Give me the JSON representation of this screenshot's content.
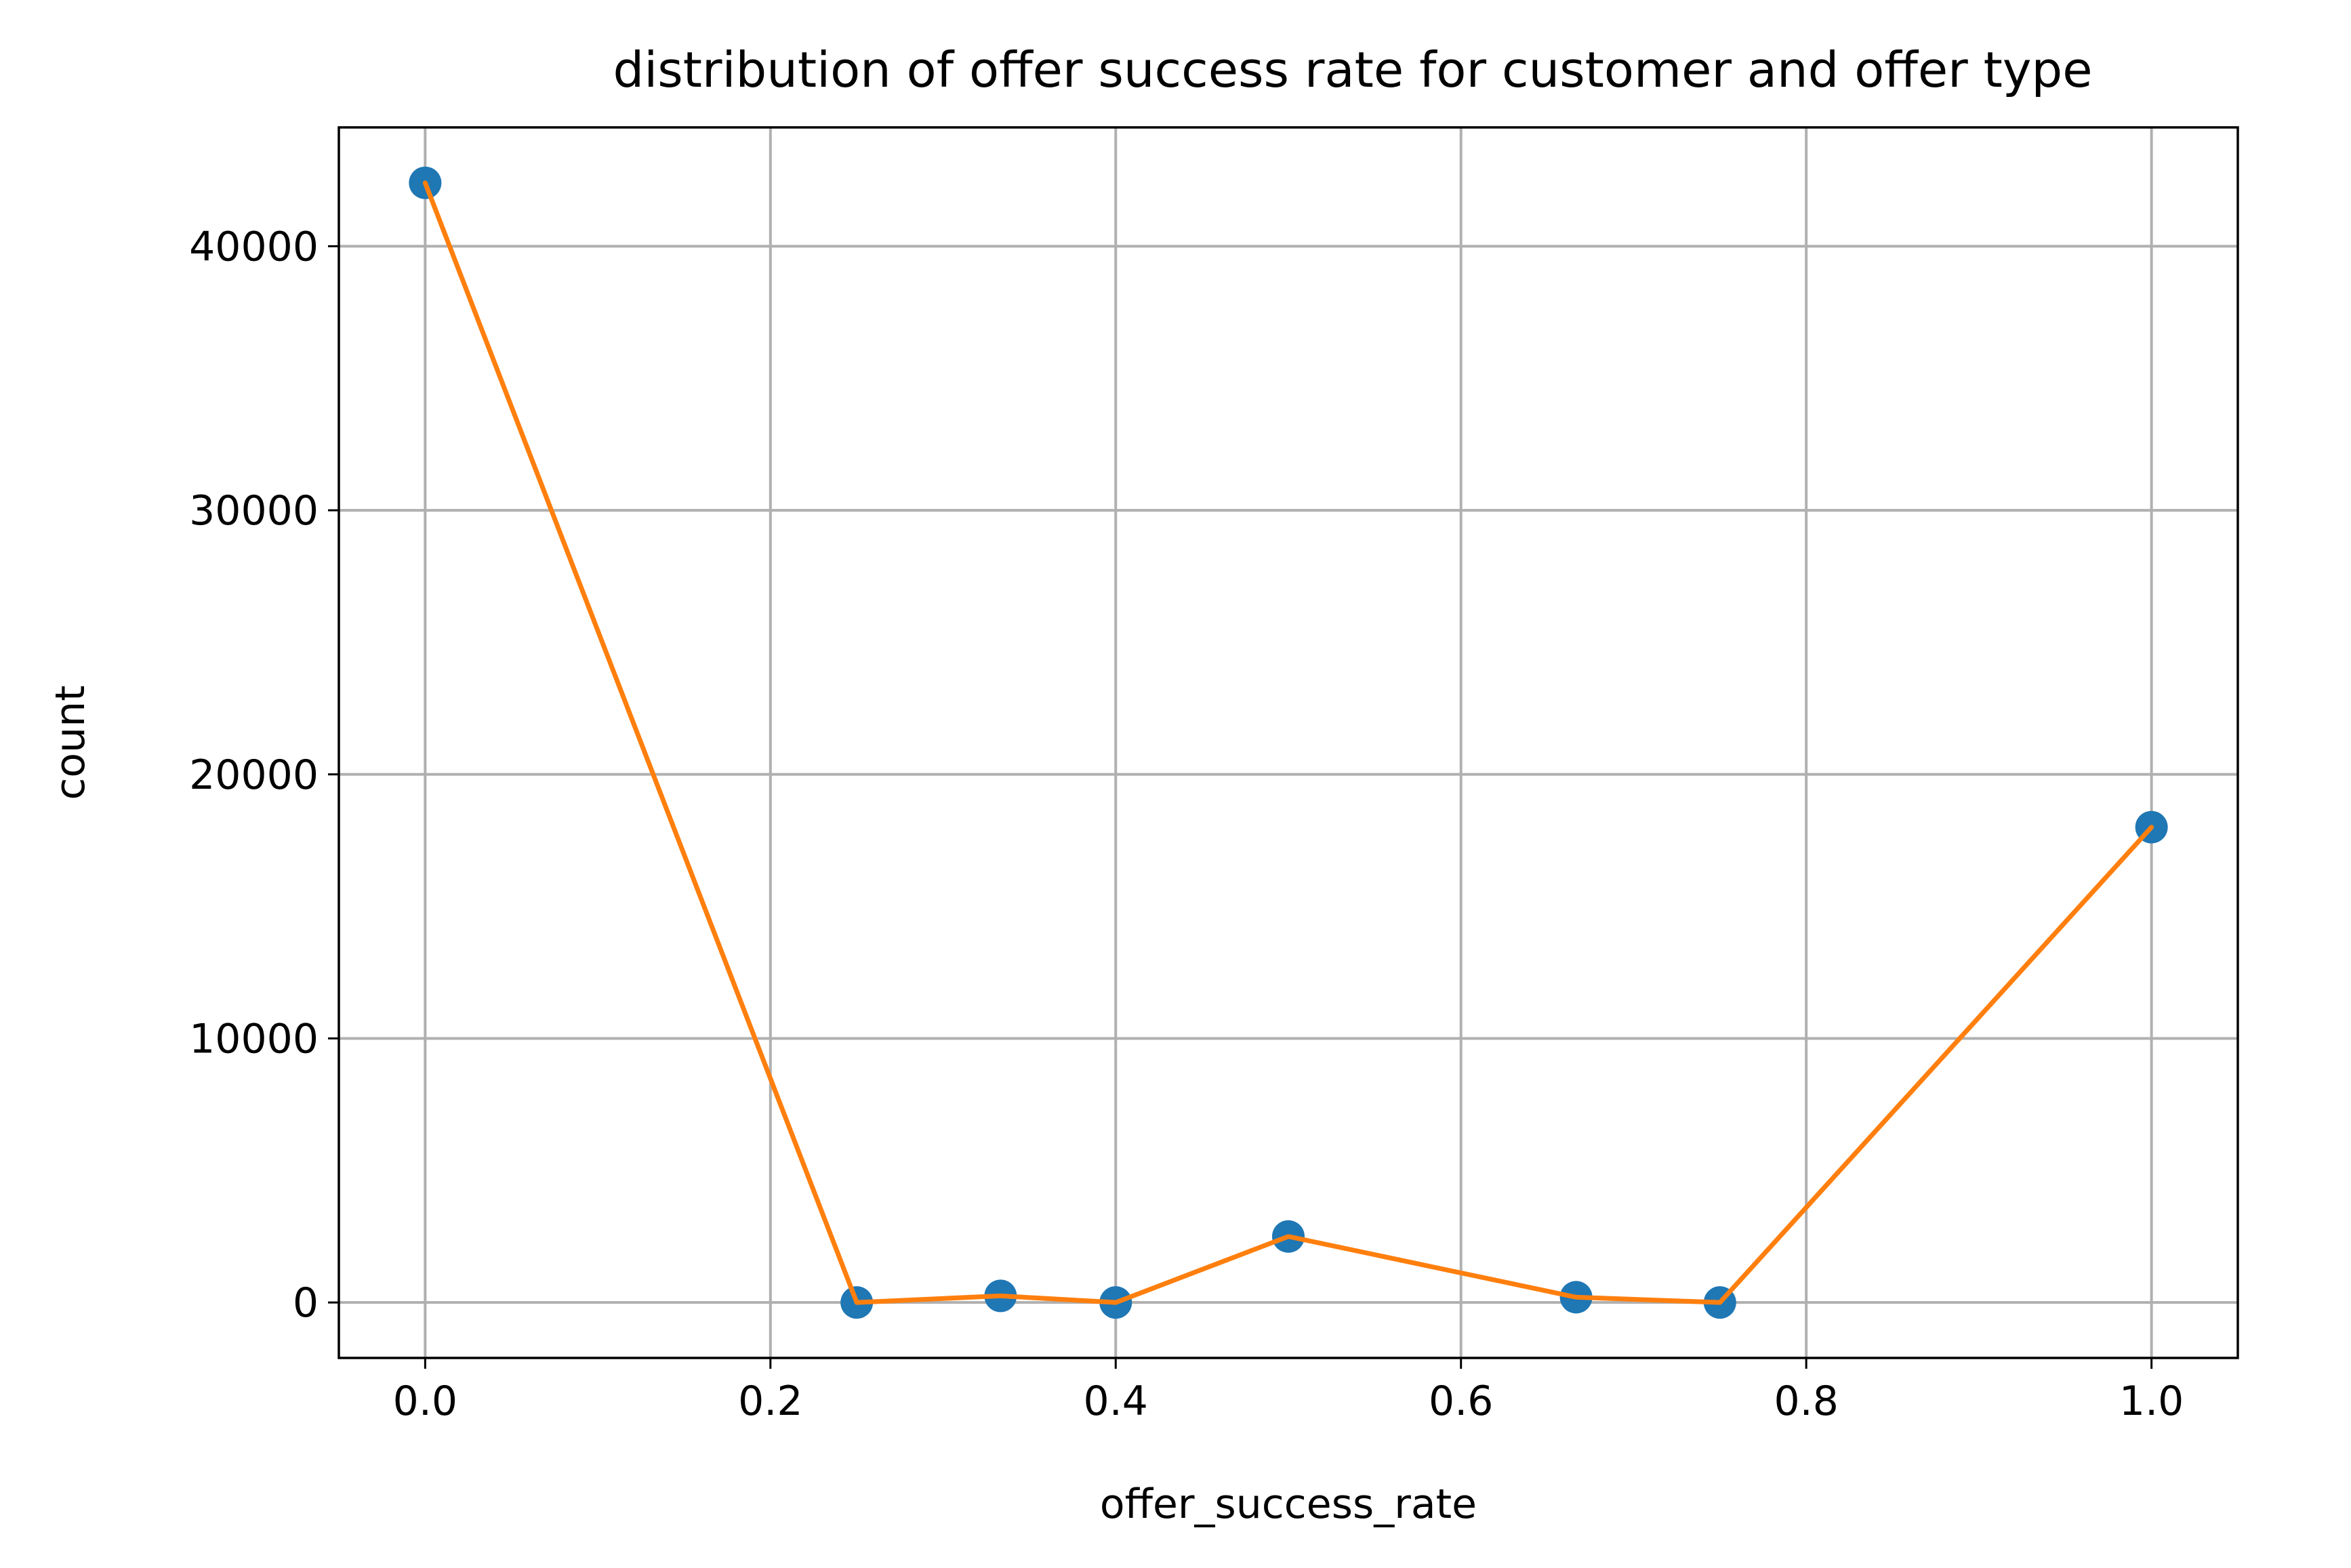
{
  "chart_data": {
    "type": "line",
    "title": "distribution of offer success rate for customer and offer type",
    "xlabel": "offer_success_rate",
    "ylabel": "count",
    "xlim": [
      -0.05,
      1.05
    ],
    "ylim": [
      -2100,
      44500
    ],
    "grid": true,
    "x_ticks": [
      0.0,
      0.2,
      0.4,
      0.6,
      0.8,
      1.0
    ],
    "x_tick_labels": [
      "0.0",
      "0.2",
      "0.4",
      "0.6",
      "0.8",
      "1.0"
    ],
    "y_ticks": [
      0,
      10000,
      20000,
      30000,
      40000
    ],
    "y_tick_labels": [
      "0",
      "10000",
      "20000",
      "30000",
      "40000"
    ],
    "series": [
      {
        "kind": "scatter",
        "color": "#1f77b4",
        "x": [
          0.0,
          0.25,
          0.3333,
          0.4,
          0.5,
          0.6667,
          0.75,
          1.0
        ],
        "y": [
          42400,
          0,
          250,
          0,
          2500,
          200,
          0,
          18000
        ]
      },
      {
        "kind": "line",
        "color": "#ff7f0e",
        "x": [
          0.0,
          0.25,
          0.3333,
          0.4,
          0.5,
          0.6667,
          0.75,
          1.0
        ],
        "y": [
          42400,
          0,
          250,
          0,
          2500,
          200,
          0,
          18000
        ]
      }
    ]
  }
}
